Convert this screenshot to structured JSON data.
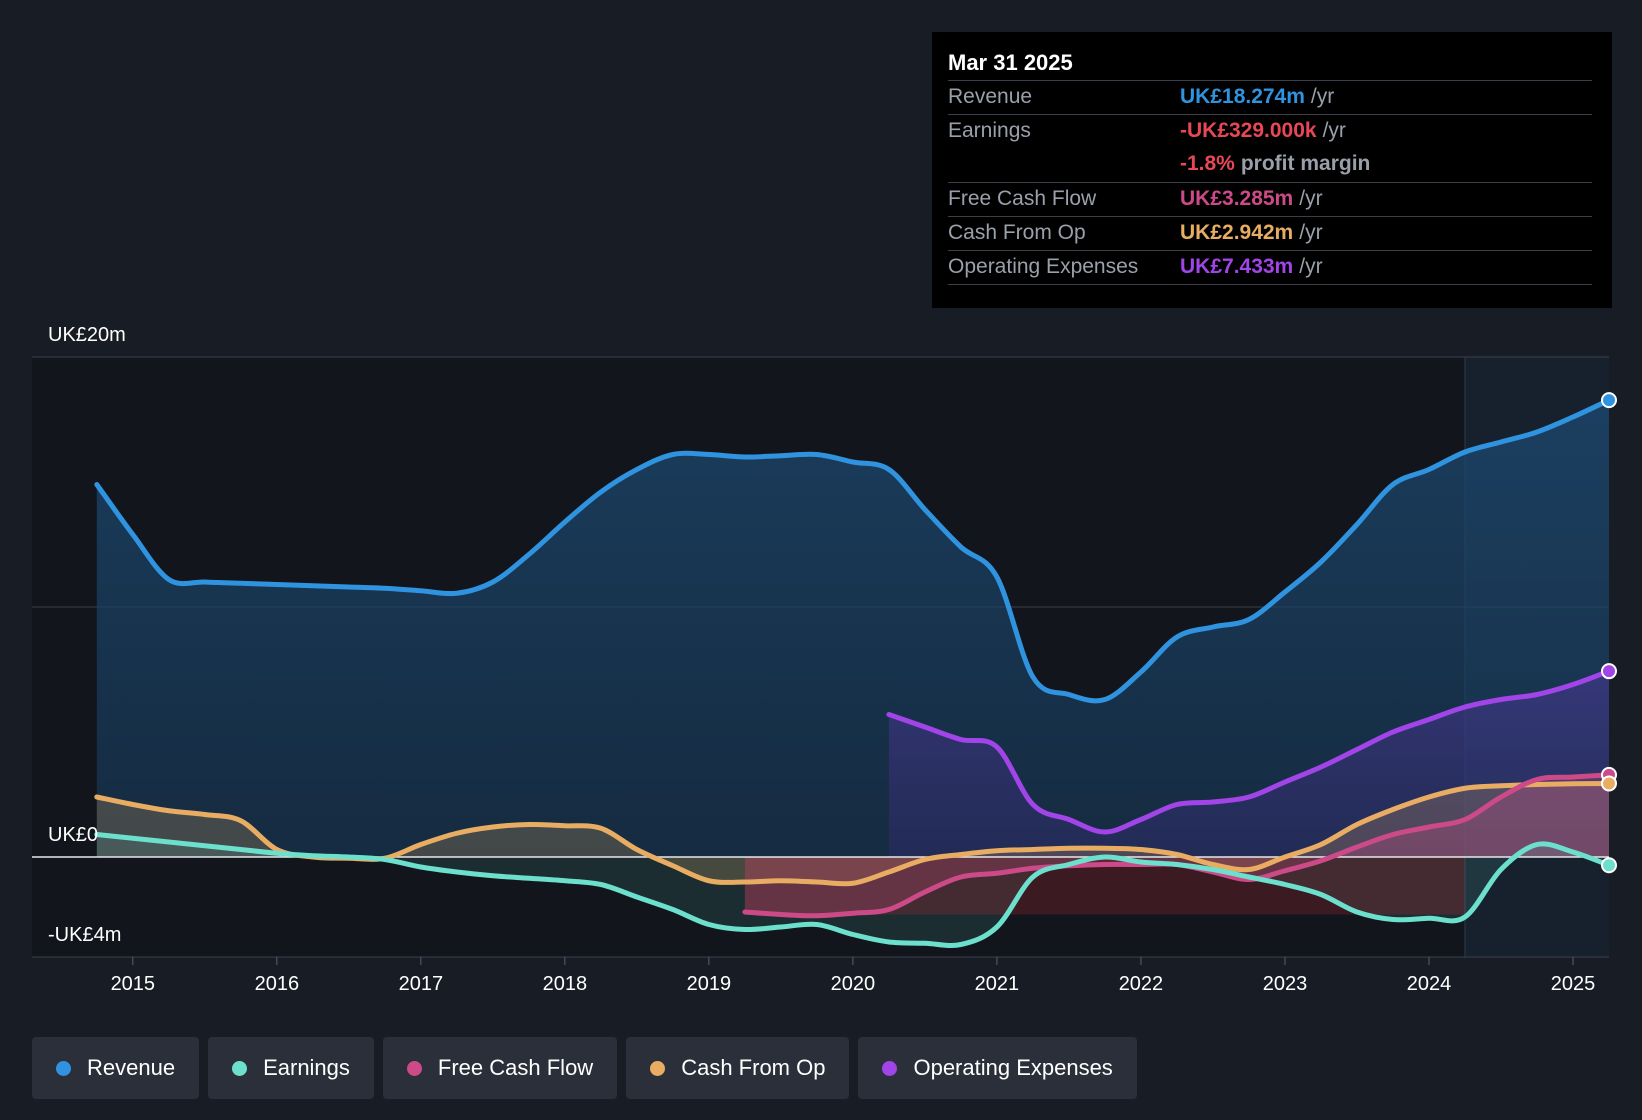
{
  "tooltip": {
    "date": "Mar 31 2025",
    "rows": [
      {
        "label": "Revenue",
        "value": "UK£18.274m",
        "unit": "/yr",
        "color": "#2f93e0"
      },
      {
        "label": "Earnings",
        "value": "-UK£329.000k",
        "unit": "/yr",
        "color": "#e84855"
      },
      {
        "label": "",
        "value": "-1.8%",
        "unit": "profit margin",
        "color": "#e84855"
      },
      {
        "label": "Free Cash Flow",
        "value": "UK£3.285m",
        "unit": "/yr",
        "color": "#cc4a88"
      },
      {
        "label": "Cash From Op",
        "value": "UK£2.942m",
        "unit": "/yr",
        "color": "#e8ad62"
      },
      {
        "label": "Operating Expenses",
        "value": "UK£7.433m",
        "unit": "/yr",
        "color": "#a144e8"
      }
    ]
  },
  "legend": [
    {
      "label": "Revenue",
      "color": "#2f93e0"
    },
    {
      "label": "Earnings",
      "color": "#6ce0cd"
    },
    {
      "label": "Free Cash Flow",
      "color": "#cc4a88"
    },
    {
      "label": "Cash From Op",
      "color": "#e8ad62"
    },
    {
      "label": "Operating Expenses",
      "color": "#a144e8"
    }
  ],
  "chart_data": {
    "type": "line",
    "title": "",
    "xlabel": "",
    "ylabel": "",
    "ylim": [
      -4,
      20
    ],
    "xlim": [
      2014.3,
      2025.25
    ],
    "y_tick_labels": [
      {
        "value": 20,
        "label": "UK£20m"
      },
      {
        "value": 0,
        "label": "UK£0"
      },
      {
        "value": -4,
        "label": "-UK£4m"
      }
    ],
    "x_ticks": [
      {
        "value": 2015,
        "label": "2015"
      },
      {
        "value": 2016,
        "label": "2016"
      },
      {
        "value": 2017,
        "label": "2017"
      },
      {
        "value": 2018,
        "label": "2018"
      },
      {
        "value": 2019,
        "label": "2019"
      },
      {
        "value": 2020,
        "label": "2020"
      },
      {
        "value": 2021,
        "label": "2021"
      },
      {
        "value": 2022,
        "label": "2022"
      },
      {
        "value": 2023,
        "label": "2023"
      },
      {
        "value": 2024,
        "label": "2024"
      },
      {
        "value": 2025,
        "label": "2025"
      }
    ],
    "forecast_start": 2024.25,
    "series": [
      {
        "name": "Revenue",
        "color": "#2f93e0",
        "x": [
          2014.75,
          2015.0,
          2015.25,
          2015.5,
          2015.75,
          2016.0,
          2016.25,
          2016.5,
          2016.75,
          2017.0,
          2017.25,
          2017.5,
          2017.75,
          2018.0,
          2018.25,
          2018.5,
          2018.75,
          2019.0,
          2019.25,
          2019.5,
          2019.75,
          2020.0,
          2020.25,
          2020.5,
          2020.75,
          2021.0,
          2021.25,
          2021.5,
          2021.75,
          2022.0,
          2022.25,
          2022.5,
          2022.75,
          2023.0,
          2023.25,
          2023.5,
          2023.75,
          2024.0,
          2024.25,
          2024.5,
          2024.75,
          2025.0,
          2025.25
        ],
        "values": [
          14.9,
          12.9,
          11.1,
          11.0,
          10.95,
          10.9,
          10.85,
          10.8,
          10.75,
          10.65,
          10.55,
          11.0,
          12.1,
          13.4,
          14.6,
          15.5,
          16.1,
          16.1,
          16.0,
          16.05,
          16.1,
          15.8,
          15.5,
          13.9,
          12.4,
          11.2,
          7.2,
          6.5,
          6.3,
          7.4,
          8.8,
          9.2,
          9.5,
          10.6,
          11.8,
          13.3,
          14.9,
          15.5,
          16.2,
          16.6,
          17.0,
          17.6,
          18.274
        ]
      },
      {
        "name": "Earnings",
        "color": "#6ce0cd",
        "x": [
          2014.75,
          2015.0,
          2015.25,
          2015.5,
          2015.75,
          2016.0,
          2016.25,
          2016.5,
          2016.75,
          2017.0,
          2017.25,
          2017.5,
          2017.75,
          2018.0,
          2018.25,
          2018.5,
          2018.75,
          2019.0,
          2019.25,
          2019.5,
          2019.75,
          2020.0,
          2020.25,
          2020.5,
          2020.75,
          2021.0,
          2021.25,
          2021.5,
          2021.75,
          2022.0,
          2022.25,
          2022.5,
          2022.75,
          2023.0,
          2023.25,
          2023.5,
          2023.75,
          2024.0,
          2024.25,
          2024.5,
          2024.75,
          2025.0,
          2025.25
        ],
        "values": [
          0.9,
          0.75,
          0.6,
          0.45,
          0.3,
          0.15,
          0.05,
          0.0,
          -0.1,
          -0.4,
          -0.6,
          -0.75,
          -0.85,
          -0.95,
          -1.1,
          -1.6,
          -2.1,
          -2.7,
          -2.9,
          -2.8,
          -2.7,
          -3.1,
          -3.4,
          -3.45,
          -3.5,
          -2.8,
          -0.8,
          -0.3,
          0.0,
          -0.2,
          -0.3,
          -0.5,
          -0.8,
          -1.1,
          -1.5,
          -2.2,
          -2.5,
          -2.45,
          -2.4,
          -0.5,
          0.5,
          0.2,
          -0.329
        ]
      },
      {
        "name": "Free Cash Flow",
        "color": "#cc4a88",
        "x": [
          2019.25,
          2019.5,
          2019.75,
          2020.0,
          2020.25,
          2020.5,
          2020.75,
          2021.0,
          2021.25,
          2021.5,
          2021.75,
          2022.0,
          2022.25,
          2022.5,
          2022.75,
          2023.0,
          2023.25,
          2023.5,
          2023.75,
          2024.0,
          2024.25,
          2024.5,
          2024.75,
          2025.0,
          2025.25
        ],
        "values": [
          -2.2,
          -2.3,
          -2.35,
          -2.25,
          -2.1,
          -1.4,
          -0.8,
          -0.65,
          -0.45,
          -0.35,
          -0.3,
          -0.3,
          -0.3,
          -0.6,
          -0.9,
          -0.55,
          -0.15,
          0.4,
          0.9,
          1.2,
          1.5,
          2.4,
          3.1,
          3.2,
          3.285
        ]
      },
      {
        "name": "Cash From Op",
        "color": "#e8ad62",
        "x": [
          2014.75,
          2015.0,
          2015.25,
          2015.5,
          2015.75,
          2016.0,
          2016.25,
          2016.5,
          2016.75,
          2017.0,
          2017.25,
          2017.5,
          2017.75,
          2018.0,
          2018.25,
          2018.5,
          2018.75,
          2019.0,
          2019.25,
          2019.5,
          2019.75,
          2020.0,
          2020.25,
          2020.5,
          2020.75,
          2021.0,
          2021.25,
          2021.5,
          2021.75,
          2022.0,
          2022.25,
          2022.5,
          2022.75,
          2023.0,
          2023.25,
          2023.5,
          2023.75,
          2024.0,
          2024.25,
          2024.5,
          2024.75,
          2025.0,
          2025.25
        ],
        "values": [
          2.4,
          2.1,
          1.85,
          1.7,
          1.45,
          0.3,
          0.0,
          -0.05,
          -0.05,
          0.5,
          0.95,
          1.2,
          1.3,
          1.25,
          1.15,
          0.3,
          -0.35,
          -0.95,
          -1.0,
          -0.95,
          -1.0,
          -1.05,
          -0.6,
          -0.1,
          0.1,
          0.25,
          0.3,
          0.35,
          0.35,
          0.3,
          0.1,
          -0.3,
          -0.5,
          0.0,
          0.5,
          1.3,
          1.9,
          2.4,
          2.75,
          2.85,
          2.9,
          2.93,
          2.942
        ]
      },
      {
        "name": "Operating Expenses",
        "color": "#a144e8",
        "x": [
          2020.25,
          2020.5,
          2020.75,
          2021.0,
          2021.25,
          2021.5,
          2021.75,
          2022.0,
          2022.25,
          2022.5,
          2022.75,
          2023.0,
          2023.25,
          2023.5,
          2023.75,
          2024.0,
          2024.25,
          2024.5,
          2024.75,
          2025.0,
          2025.25
        ],
        "values": [
          5.7,
          5.2,
          4.7,
          4.4,
          2.1,
          1.5,
          1.0,
          1.5,
          2.1,
          2.2,
          2.4,
          3.0,
          3.6,
          4.3,
          5.0,
          5.5,
          6.0,
          6.3,
          6.5,
          6.9,
          7.433
        ]
      }
    ]
  }
}
